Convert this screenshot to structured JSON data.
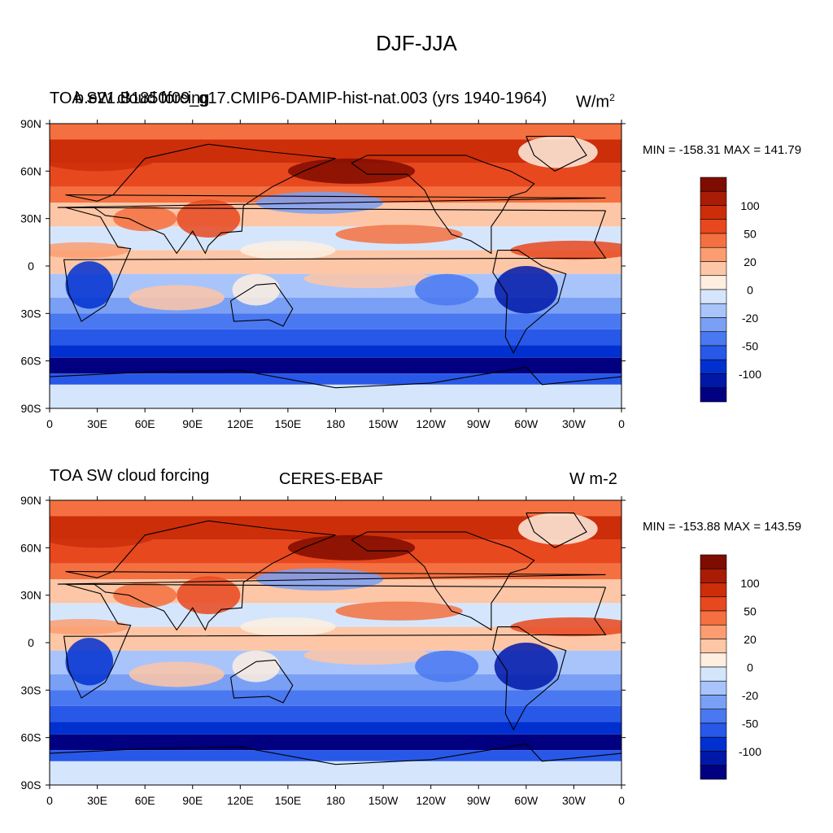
{
  "title": "DJF-JJA",
  "colors": [
    "#000080",
    "#0018a8",
    "#0030d0",
    "#2858e8",
    "#4a78f0",
    "#7aa0f5",
    "#a8c4fb",
    "#d5e6fc",
    "#fdeee0",
    "#fdc6a6",
    "#fb9d70",
    "#f57040",
    "#e8481e",
    "#cc2e0a",
    "#a91c05",
    "#7f0c00"
  ],
  "colorbar_labels": [
    "100",
    "50",
    "20",
    "0",
    "-20",
    "-50",
    "-100"
  ],
  "lat_labels": [
    "90N",
    "60N",
    "30N",
    "0",
    "30S",
    "60S",
    "90S"
  ],
  "lon_labels": [
    "0",
    "30E",
    "60E",
    "90E",
    "120E",
    "150E",
    "180",
    "150W",
    "120W",
    "90W",
    "60W",
    "30W",
    "0"
  ],
  "panels": [
    {
      "left_string": "TOA SW cloud forcing",
      "center_string": "b.e21.B1850f09_g17.CMIP6-DAMIP-hist-nat.003 (yrs 1940-1964)",
      "units": "W/m",
      "units_sup": "2",
      "min_label": "MIN = -158.31",
      "max_label": "MAX = 141.79"
    },
    {
      "left_string": "TOA SW cloud forcing",
      "center_string": "CERES-EBAF",
      "units": "W m-2",
      "units_sup": "",
      "min_label": "MIN = -153.88",
      "max_label": "MAX = 143.59"
    }
  ],
  "chart_data": {
    "type": "heatmap",
    "projection": "cylindrical equidistant, 0-360 longitude",
    "contour_levels": [
      -120,
      -100,
      -80,
      -60,
      -50,
      -40,
      -30,
      -20,
      -10,
      0,
      10,
      20,
      30,
      40,
      50,
      60,
      70,
      80,
      100,
      120
    ],
    "variable": "TOA SW cloud forcing seasonal difference DJF-JJA"
  }
}
